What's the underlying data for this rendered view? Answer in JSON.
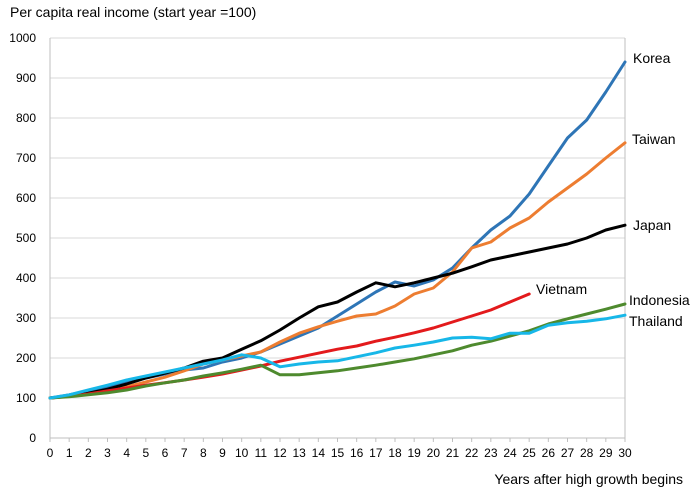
{
  "chart_data": {
    "type": "line",
    "ylabel": "Per capita real income (start year =100)",
    "xlabel": "Years after high growth begins",
    "xlim": [
      0,
      30
    ],
    "ylim": [
      0,
      1000
    ],
    "x_ticks": [
      "0",
      "1",
      "2",
      "3",
      "4",
      "5",
      "6",
      "7",
      "8",
      "9",
      "10",
      "11",
      "12",
      "13",
      "14",
      "15",
      "16",
      "17",
      "18",
      "19",
      "20",
      "21",
      "22",
      "23",
      "24",
      "25",
      "26",
      "27",
      "28",
      "29",
      "30"
    ],
    "y_ticks": [
      "0",
      "100",
      "200",
      "300",
      "400",
      "500",
      "600",
      "700",
      "800",
      "900",
      "1000"
    ],
    "grid": "horizontal",
    "series": [
      {
        "name": "Korea",
        "color": "#2e75b6",
        "values": [
          100,
          108,
          118,
          128,
          138,
          150,
          160,
          170,
          175,
          190,
          200,
          215,
          235,
          255,
          275,
          305,
          335,
          365,
          390,
          380,
          395,
          425,
          475,
          520,
          555,
          610,
          680,
          750,
          795,
          865,
          940
        ]
      },
      {
        "name": "Taiwan",
        "color": "#ed7d31",
        "values": [
          100,
          105,
          112,
          120,
          128,
          140,
          152,
          168,
          185,
          195,
          205,
          215,
          240,
          262,
          278,
          292,
          305,
          310,
          330,
          360,
          375,
          415,
          475,
          490,
          525,
          550,
          590,
          625,
          660,
          700,
          738
        ]
      },
      {
        "name": "Japan",
        "color": "#000000",
        "values": [
          100,
          105,
          112,
          122,
          135,
          150,
          162,
          175,
          192,
          200,
          222,
          243,
          270,
          300,
          328,
          340,
          365,
          388,
          378,
          388,
          400,
          412,
          428,
          445,
          455,
          465,
          475,
          485,
          500,
          520,
          532
        ]
      },
      {
        "name": "Vietnam",
        "color": "#e31a1c",
        "values": [
          100,
          104,
          110,
          118,
          125,
          132,
          138,
          145,
          152,
          160,
          170,
          180,
          192,
          202,
          212,
          222,
          230,
          242,
          252,
          263,
          275,
          290,
          305,
          320,
          340,
          360
        ]
      },
      {
        "name": "Indonesia",
        "color": "#4e8a2e",
        "values": [
          100,
          103,
          108,
          113,
          120,
          130,
          138,
          145,
          155,
          163,
          172,
          182,
          158,
          158,
          163,
          168,
          175,
          182,
          190,
          198,
          208,
          218,
          232,
          242,
          255,
          268,
          285,
          298,
          310,
          322,
          335
        ]
      },
      {
        "name": "Thailand",
        "color": "#17b7e8",
        "values": [
          100,
          108,
          120,
          132,
          145,
          155,
          165,
          175,
          185,
          195,
          208,
          200,
          178,
          185,
          190,
          193,
          203,
          213,
          225,
          232,
          240,
          250,
          252,
          248,
          262,
          262,
          282,
          288,
          292,
          298,
          307
        ]
      }
    ]
  }
}
